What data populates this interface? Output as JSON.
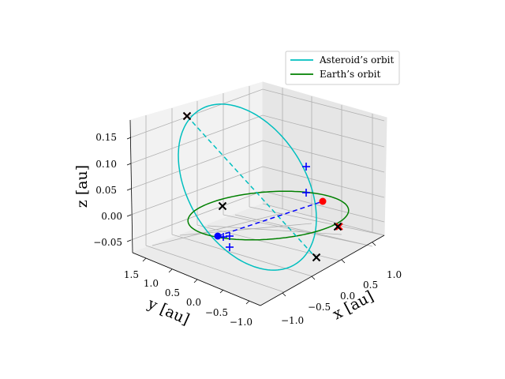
{
  "chart_data": {
    "type": "line",
    "projection": "3d",
    "title": "",
    "xlabel": "x [au]",
    "ylabel": "y [au]",
    "zlabel": "z [au]",
    "xticks": [
      "−1.0",
      "−0.5",
      "0.0",
      "0.5",
      "1.0"
    ],
    "yticks": [
      "−1.0",
      "−0.5",
      "0.0",
      "0.5",
      "1.0",
      "1.5"
    ],
    "zticks": [
      "−0.05",
      "0.00",
      "0.05",
      "0.10",
      "0.15"
    ],
    "grid": true,
    "legend_position": "top-right",
    "legend": [
      {
        "label": "Asteroid’s orbit",
        "color": "#00bfbf"
      },
      {
        "label": "Earth’s orbit",
        "color": "#008000"
      }
    ],
    "series": [
      {
        "name": "Asteroid’s orbit",
        "color": "#00bfbf",
        "style": "solid",
        "shape": "inclined ellipse",
        "x_range": [
          -0.9,
          0.3
        ],
        "y_range": [
          -0.35,
          1.5
        ],
        "z_range": [
          -0.06,
          0.17
        ]
      },
      {
        "name": "Earth’s orbit",
        "color": "#008000",
        "style": "solid",
        "shape": "circle",
        "radius": 1.0,
        "z": 0.0
      },
      {
        "name": "Asteroid line of nodes",
        "color": "#00bfbf",
        "style": "dashed"
      },
      {
        "name": "Earth line of apsides",
        "color": "#0000ff",
        "style": "dashed"
      }
    ],
    "markers": [
      {
        "symbol": "x",
        "color": "#000000",
        "count": 4
      },
      {
        "symbol": "x",
        "color": "#ff0000",
        "count": 2
      },
      {
        "symbol": "+",
        "color": "#0000ff",
        "count": 5
      },
      {
        "symbol": "circle",
        "color": "#0000ff",
        "count": 1
      },
      {
        "symbol": "circle",
        "color": "#ff0000",
        "count": 1
      }
    ]
  }
}
